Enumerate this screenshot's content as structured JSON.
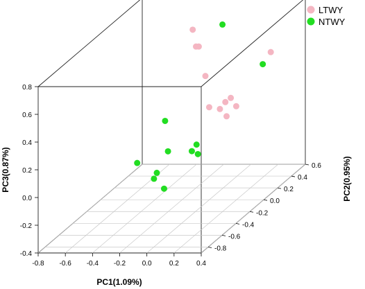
{
  "chart_data": {
    "type": "scatter3d",
    "xlabel": "PC1(1.09%)",
    "ylabel": "PC2(0.95%)",
    "zlabel": "PC3(0.87%)",
    "x_ticks": [
      "-0.8",
      "-0.6",
      "-0.4",
      "-0.2",
      "0.0",
      "0.2",
      "0.4"
    ],
    "y_ticks": [
      "-0.8",
      "-0.6",
      "-0.4",
      "-0.2",
      "0.0",
      "0.2",
      "0.4",
      "0.6"
    ],
    "z_ticks": [
      "-0.4",
      "-0.2",
      "0.0",
      "0.2",
      "0.4",
      "0.6",
      "0.8"
    ],
    "xlim": [
      -0.8,
      0.4
    ],
    "ylim": [
      -0.9,
      0.6
    ],
    "zlim": [
      -0.4,
      0.8
    ],
    "legend_position": "top-right",
    "series": [
      {
        "name": "LTWY",
        "color": "#f4b6c2",
        "points": [
          {
            "x": -0.25,
            "y": 0.25,
            "z": 0.72
          },
          {
            "x": -0.2,
            "y": 0.2,
            "z": 0.62
          },
          {
            "x": -0.18,
            "y": 0.2,
            "z": 0.62
          },
          {
            "x": -0.08,
            "y": 0.1,
            "z": 0.45
          },
          {
            "x": 0.05,
            "y": -0.1,
            "z": 0.31
          },
          {
            "x": 0.18,
            "y": -0.2,
            "z": 0.34
          },
          {
            "x": 0.22,
            "y": -0.2,
            "z": 0.39
          },
          {
            "x": 0.26,
            "y": -0.2,
            "z": 0.42
          },
          {
            "x": 0.28,
            "y": -0.3,
            "z": 0.33
          },
          {
            "x": 0.3,
            "y": -0.2,
            "z": 0.36
          },
          {
            "x": 0.35,
            "y": 0.2,
            "z": 0.58
          }
        ]
      },
      {
        "name": "NTWY",
        "color": "#22dd22",
        "points": [
          {
            "x": 0.02,
            "y": 0.15,
            "z": 0.8
          },
          {
            "x": -0.3,
            "y": -0.05,
            "z": 0.19
          },
          {
            "x": -0.1,
            "y": -0.4,
            "z": 0.12
          },
          {
            "x": 0.05,
            "y": -0.35,
            "z": 0.1
          },
          {
            "x": 0.1,
            "y": -0.38,
            "z": 0.16
          },
          {
            "x": 0.12,
            "y": -0.4,
            "z": 0.1
          },
          {
            "x": 0.24,
            "y": 0.3,
            "z": 0.45
          },
          {
            "x": -0.25,
            "y": -0.55,
            "z": 0.1
          },
          {
            "x": -0.08,
            "y": -0.6,
            "z": 0.05
          },
          {
            "x": -0.05,
            "y": -0.7,
            "z": 0.05
          },
          {
            "x": 0.05,
            "y": -0.75,
            "z": 0.0
          }
        ]
      }
    ]
  }
}
